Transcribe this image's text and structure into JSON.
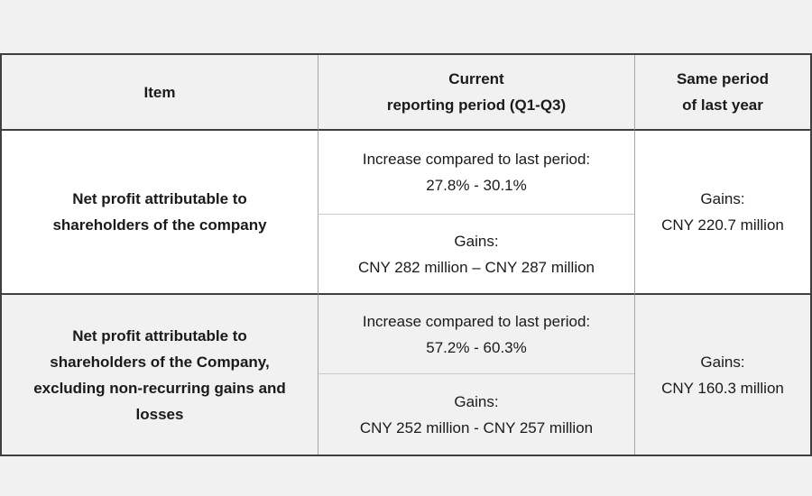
{
  "table": {
    "headers": {
      "item": "Item",
      "current": [
        "Current",
        "reporting period (Q1-Q3)"
      ],
      "same_period": [
        "Same period",
        "of last year"
      ]
    },
    "rows": [
      {
        "item": [
          "Net profit attributable to",
          "shareholders of the company"
        ],
        "increase": [
          "Increase compared to last period:",
          "27.8% - 30.1%"
        ],
        "gains": [
          "Gains:",
          "CNY 282 million – CNY 287 million"
        ],
        "same_period_gains": [
          "Gains:",
          "CNY 220.7 million"
        ]
      },
      {
        "item": [
          "Net profit attributable to",
          "shareholders of the Company,",
          "excluding non-recurring gains and",
          "losses"
        ],
        "increase": [
          "Increase compared to last period:",
          "57.2% - 60.3%"
        ],
        "gains": [
          "Gains:",
          "CNY 252 million - CNY 257 million"
        ],
        "same_period_gains": [
          "Gains:",
          "CNY 160.3 million"
        ]
      }
    ]
  },
  "colors": {
    "page_background": "#f1f1f1",
    "row_shaded_background": "#f1f1f1",
    "row_white_background": "#ffffff",
    "border_dark": "#3f3f3f",
    "border_vertical": "#a6a6a6",
    "border_subdivider": "#c9c9c9",
    "text": "#1a1a1a"
  }
}
